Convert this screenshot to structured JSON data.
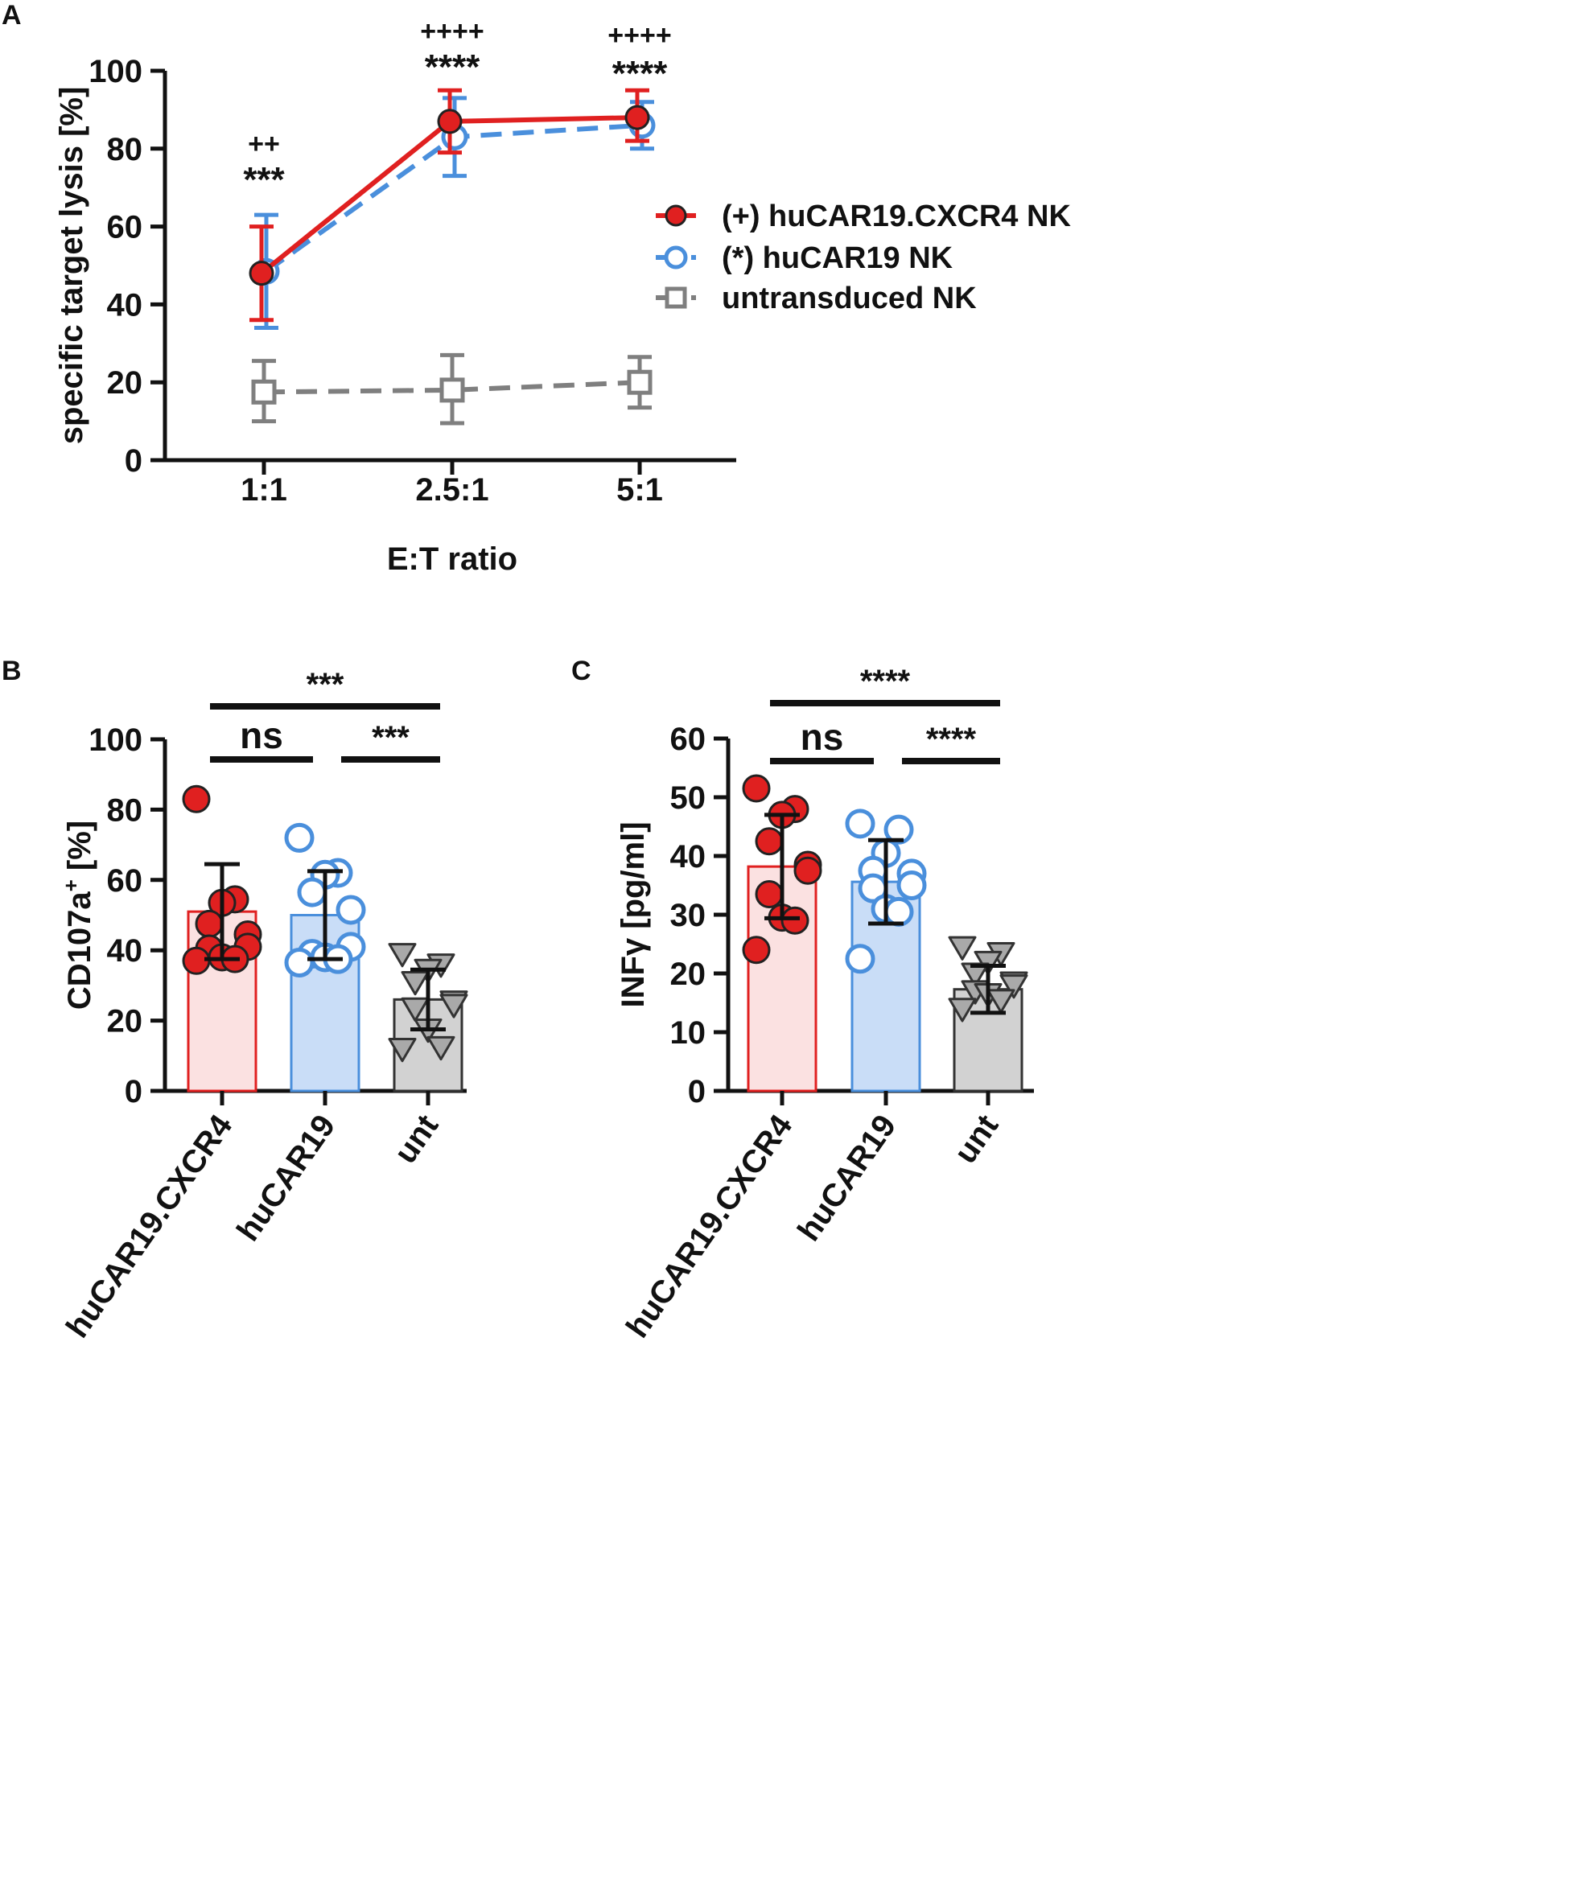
{
  "colors": {
    "red": "#e02020",
    "blue": "#4a8fdc",
    "gray": "#7f7f7f",
    "red_fill": "#fbe1e1",
    "blue_fill": "#c9ddf7",
    "gray_fill": "#d2d2d2",
    "axis": "#111111"
  },
  "chart_data": [
    {
      "panel_label": "A",
      "type": "line",
      "xlabel": "E:T ratio",
      "ylabel": "specific target lysis [%]",
      "categories": [
        "1:1",
        "2.5:1",
        "5:1"
      ],
      "ylim": [
        0,
        100
      ],
      "yticks": [
        "0",
        "20",
        "40",
        "60",
        "80",
        "100"
      ],
      "series": [
        {
          "name": "(+) huCAR19.CXCR4 NK",
          "color": "red",
          "marker": "filled-circle",
          "line": "solid",
          "values": [
            48,
            87,
            88
          ],
          "err_low": [
            36,
            79,
            82
          ],
          "err_high": [
            60,
            95,
            95
          ]
        },
        {
          "name": "(*) huCAR19 NK",
          "color": "blue",
          "marker": "open-circle",
          "line": "dashed",
          "values": [
            48.5,
            83,
            86
          ],
          "err_low": [
            34,
            73,
            80
          ],
          "err_high": [
            63,
            93,
            92
          ]
        },
        {
          "name": "untransduced NK",
          "color": "gray",
          "marker": "open-square",
          "line": "dashed",
          "values": [
            17.5,
            18,
            20
          ],
          "err_low": [
            10,
            9.5,
            13.5
          ],
          "err_high": [
            25.5,
            27,
            26.5
          ]
        }
      ],
      "annotations": [
        {
          "category": "1:1",
          "plus": "++",
          "star": "***"
        },
        {
          "category": "2.5:1",
          "plus": "++++",
          "star": "****"
        },
        {
          "category": "5:1",
          "plus": "++++",
          "star": "****"
        }
      ]
    },
    {
      "panel_label": "B",
      "type": "bar",
      "ylabel_main": "CD107a",
      "ylabel_sup": "+",
      "ylabel_rest": " [%]",
      "categories": [
        "huCAR19.CXCR4",
        "huCAR19",
        "unt"
      ],
      "ylim": [
        0,
        100
      ],
      "yticks": [
        "0",
        "20",
        "40",
        "60",
        "80",
        "100"
      ],
      "means": [
        51,
        50,
        26
      ],
      "sd": [
        13.5,
        12.5,
        8.5
      ],
      "points": [
        [
          83,
          54.5,
          53.5,
          47.5,
          44.5,
          41,
          40.5,
          38,
          37.5,
          37
        ],
        [
          72,
          62,
          61.5,
          56.5,
          51.5,
          41,
          39,
          38,
          37.5,
          36.5
        ],
        [
          39,
          36,
          34.5,
          31,
          25.5,
          24.5,
          23.5,
          17.5,
          12.5,
          12
        ]
      ],
      "markers": [
        "filled-circle",
        "open-circle",
        "filled-triangle"
      ],
      "brackets": [
        {
          "from": 0,
          "to": 2,
          "label": "***"
        },
        {
          "from": 0,
          "to": 1,
          "label": "ns"
        },
        {
          "from": 1,
          "to": 2,
          "label": "***"
        }
      ]
    },
    {
      "panel_label": "C",
      "type": "bar",
      "ylabel_main": "INFγ [pg/ml]",
      "ylabel_sup": "",
      "ylabel_rest": "",
      "categories": [
        "huCAR19.CXCR4",
        "huCAR19",
        "unt"
      ],
      "ylim": [
        0,
        60
      ],
      "yticks": [
        "0",
        "10",
        "20",
        "30",
        "40",
        "50",
        "60"
      ],
      "means": [
        38.2,
        35.6,
        17.3
      ],
      "sd": [
        8.8,
        7.1,
        4
      ],
      "points": [
        [
          51.5,
          48,
          47,
          42.5,
          38.5,
          37.5,
          33.5,
          29.5,
          29,
          24
        ],
        [
          45.5,
          44.5,
          40.5,
          37.5,
          37,
          35,
          34.5,
          31,
          30.5,
          22.5
        ],
        [
          24.5,
          23.5,
          22,
          20,
          18.5,
          18,
          17,
          16.5,
          15.5,
          14
        ]
      ],
      "markers": [
        "filled-circle",
        "open-circle",
        "filled-triangle"
      ],
      "brackets": [
        {
          "from": 0,
          "to": 2,
          "label": "****"
        },
        {
          "from": 0,
          "to": 1,
          "label": "ns"
        },
        {
          "from": 1,
          "to": 2,
          "label": "****"
        }
      ]
    }
  ]
}
